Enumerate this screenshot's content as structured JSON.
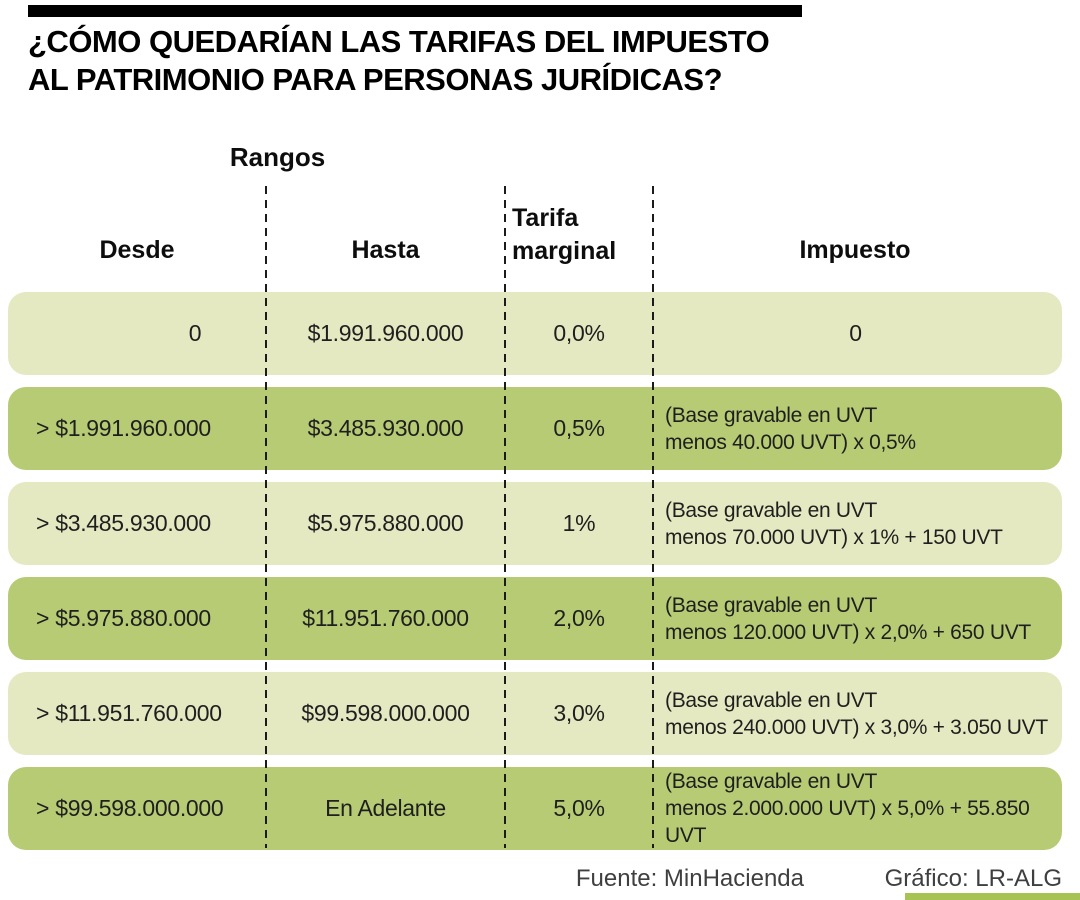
{
  "header": {
    "title_line1": "¿CÓMO QUEDARÍAN LAS TARIFAS DEL IMPUESTO",
    "title_line2": "AL PATRIMONIO PARA PERSONAS JURÍDICAS?"
  },
  "chart_data": {
    "type": "table",
    "title": "¿CÓMO QUEDARÍAN LAS TARIFAS DEL IMPUESTO AL PATRIMONIO PARA PERSONAS JURÍDICAS?",
    "group_header": "Rangos",
    "columns": [
      "Desde",
      "Hasta",
      "Tarifa marginal",
      "Impuesto"
    ],
    "rows": [
      [
        "0",
        "$1.991.960.000",
        "0,0%",
        "0"
      ],
      [
        "> $1.991.960.000",
        "$3.485.930.000",
        "0,5%",
        "(Base gravable en UVT\nmenos 40.000 UVT) x 0,5%"
      ],
      [
        "> $3.485.930.000",
        "$5.975.880.000",
        "1%",
        "(Base gravable en UVT\nmenos 70.000 UVT) x 1% + 150 UVT"
      ],
      [
        "> $5.975.880.000",
        "$11.951.760.000",
        "2,0%",
        "(Base gravable en UVT\nmenos 120.000 UVT) x 2,0% + 650 UVT"
      ],
      [
        "> $11.951.760.000",
        "$99.598.000.000",
        "3,0%",
        "(Base gravable en UVT\nmenos 240.000 UVT) x 3,0% + 3.050 UVT"
      ],
      [
        "> $99.598.000.000",
        "En Adelante",
        "5,0%",
        "(Base gravable en UVT\nmenos 2.000.000 UVT) x 5,0% + 55.850 UVT"
      ]
    ]
  },
  "footer": {
    "source": "Fuente: MinHacienda",
    "credit": "Gráfico: LR-ALG"
  },
  "colors": {
    "row_light": "#e5e9c1",
    "row_dark": "#b6cb74",
    "header_bar": "#000000",
    "accent_bar": "#a6c353",
    "divider": "#1b1b1b",
    "footer_text": "#3f3f3f",
    "text": "#1d1d1d"
  }
}
